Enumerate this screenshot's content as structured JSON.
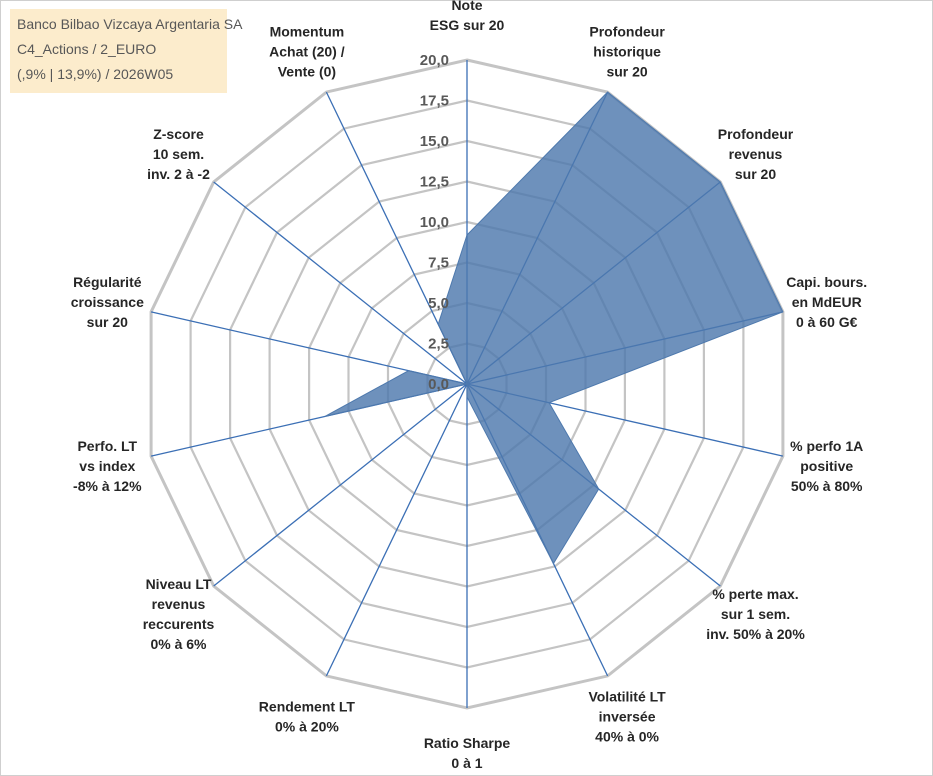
{
  "colors": {
    "area": "#4e79ad",
    "grid": "#c4c4c4",
    "axis": "#3b6fb5"
  },
  "title_box": {
    "line1": "Banco Bilbao Vizcaya Argentaria SA",
    "line2": "C4_Actions / 2_EURO",
    "line3": "(,9% | 13,9%) / 2026W05"
  },
  "chart_data": {
    "type": "radar",
    "ticks": [
      "0,0",
      "2,5",
      "5,0",
      "7,5",
      "10,0",
      "12,5",
      "15,0",
      "17,5",
      "20,0"
    ],
    "rmax": 20,
    "axes": [
      {
        "label": [
          "Note",
          "ESG sur 20"
        ],
        "value": 9.2
      },
      {
        "label": [
          "Profondeur",
          "historique",
          "sur 20"
        ],
        "value": 20
      },
      {
        "label": [
          "Profondeur",
          "revenus",
          "sur 20"
        ],
        "value": 20
      },
      {
        "label": [
          "Capi. bours.",
          "en MdEUR",
          "0 à 60 G€"
        ],
        "value": 20
      },
      {
        "label": [
          "% perfo 1A",
          "positive",
          "50% à 80%"
        ],
        "value": 5.2
      },
      {
        "label": [
          "% perte max.",
          "sur 1 sem.",
          "inv. 50% à 20%"
        ],
        "value": 10.4
      },
      {
        "label": [
          "Volatilité LT",
          "inversée",
          "40% à 0%"
        ],
        "value": 12.3
      },
      {
        "label": [
          "Ratio Sharpe",
          "0 à 1"
        ],
        "value": 0.8
      },
      {
        "label": [
          "Rendement LT",
          "0% à 20%"
        ],
        "value": 0
      },
      {
        "label": [
          "Niveau LT",
          "revenus",
          "reccurents",
          "0% à 6%"
        ],
        "value": 0
      },
      {
        "label": [
          "Perfo. LT",
          "vs index",
          "-8% à 12%"
        ],
        "value": 9.0
      },
      {
        "label": [
          "Régularité",
          "croissance",
          "sur 20"
        ],
        "value": 3.7
      },
      {
        "label": [
          "Z-score",
          "10 sem.",
          "inv. 2 à -2"
        ],
        "value": 0
      },
      {
        "label": [
          "Momentum",
          "Achat (20) /",
          "Vente (0)"
        ],
        "value": 4.1
      }
    ]
  }
}
